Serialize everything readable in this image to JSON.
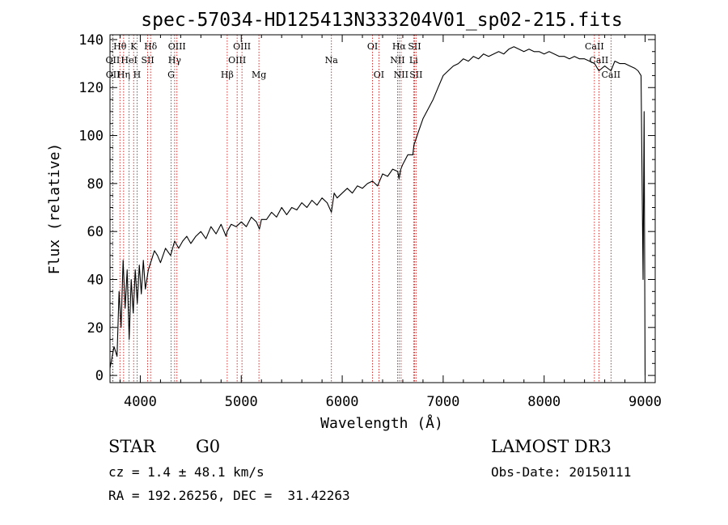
{
  "chart_data": {
    "type": "line",
    "title": "spec-57034-HD125413N333204V01_sp02-215.fits",
    "xlabel": "Wavelength (Å)",
    "ylabel": "Flux (relative)",
    "xlim": [
      3700,
      9100
    ],
    "ylim": [
      -3,
      142
    ],
    "xticks": [
      {
        "value": 4000,
        "label": "4000"
      },
      {
        "value": 5000,
        "label": "5000"
      },
      {
        "value": 6000,
        "label": "6000"
      },
      {
        "value": 7000,
        "label": "7000"
      },
      {
        "value": 8000,
        "label": "8000"
      },
      {
        "value": 9000,
        "label": "9000"
      }
    ],
    "yticks": [
      {
        "value": 0,
        "label": "0"
      },
      {
        "value": 20,
        "label": "20"
      },
      {
        "value": 40,
        "label": "40"
      },
      {
        "value": 60,
        "label": "60"
      },
      {
        "value": 80,
        "label": "80"
      },
      {
        "value": 100,
        "label": "100"
      },
      {
        "value": 120,
        "label": "120"
      },
      {
        "value": 140,
        "label": "140"
      }
    ],
    "grid": false,
    "line_color": "#000000",
    "marker_color": "#cc0000",
    "series": [
      {
        "name": "spectrum",
        "x": [
          3700,
          3740,
          3770,
          3790,
          3810,
          3830,
          3850,
          3870,
          3890,
          3910,
          3930,
          3950,
          3970,
          3990,
          4010,
          4030,
          4050,
          4080,
          4110,
          4140,
          4170,
          4200,
          4250,
          4300,
          4340,
          4380,
          4420,
          4460,
          4500,
          4550,
          4600,
          4650,
          4700,
          4750,
          4800,
          4850,
          4860,
          4900,
          4950,
          5000,
          5050,
          5100,
          5150,
          5180,
          5200,
          5250,
          5300,
          5350,
          5400,
          5450,
          5500,
          5550,
          5600,
          5650,
          5700,
          5750,
          5800,
          5850,
          5893,
          5920,
          5950,
          6000,
          6050,
          6100,
          6150,
          6200,
          6250,
          6300,
          6350,
          6400,
          6450,
          6500,
          6550,
          6563,
          6580,
          6600,
          6650,
          6700,
          6710,
          6750,
          6800,
          6850,
          6900,
          6950,
          7000,
          7050,
          7100,
          7150,
          7200,
          7250,
          7300,
          7350,
          7400,
          7450,
          7500,
          7550,
          7600,
          7650,
          7700,
          7750,
          7800,
          7850,
          7900,
          7950,
          8000,
          8050,
          8100,
          8150,
          8200,
          8250,
          8300,
          8350,
          8400,
          8450,
          8500,
          8542,
          8600,
          8662,
          8700,
          8750,
          8800,
          8850,
          8900,
          8930,
          8960,
          8980,
          8990,
          9000
        ],
        "y": [
          3,
          12,
          8,
          35,
          20,
          48,
          28,
          44,
          15,
          40,
          26,
          44,
          30,
          46,
          34,
          48,
          36,
          44,
          48,
          52,
          50,
          47,
          53,
          50,
          56,
          53,
          56,
          58,
          55,
          58,
          60,
          57,
          62,
          59,
          63,
          58,
          60,
          63,
          62,
          64,
          62,
          66,
          64,
          61,
          65,
          65,
          68,
          66,
          70,
          67,
          70,
          69,
          72,
          70,
          73,
          71,
          74,
          72,
          68,
          76,
          74,
          76,
          78,
          76,
          79,
          78,
          80,
          81,
          79,
          84,
          83,
          86,
          85,
          82,
          86,
          88,
          92,
          92,
          96,
          101,
          107,
          111,
          115,
          120,
          125,
          127,
          129,
          130,
          132,
          131,
          133,
          132,
          134,
          133,
          134,
          135,
          134,
          136,
          137,
          136,
          135,
          136,
          135,
          135,
          134,
          135,
          134,
          133,
          133,
          132,
          133,
          132,
          132,
          131,
          130,
          127,
          129,
          127,
          131,
          130,
          130,
          129,
          128,
          127,
          125,
          40,
          110,
          0
        ]
      }
    ],
    "lines": [
      {
        "wl": 3727,
        "label": "OII",
        "row": 1
      },
      {
        "wl": 3729,
        "label": "OII",
        "row": 2
      },
      {
        "wl": 3798,
        "label": "Hθ",
        "row": 0
      },
      {
        "wl": 3835,
        "label": "Hη",
        "row": 2
      },
      {
        "wl": 3889,
        "label": "HeI",
        "row": 1
      },
      {
        "wl": 3934,
        "label": "K",
        "row": 0
      },
      {
        "wl": 3968,
        "label": "H",
        "row": 2
      },
      {
        "wl": 4073,
        "label": "SII",
        "row": 1
      },
      {
        "wl": 4102,
        "label": "Hδ",
        "row": 0
      },
      {
        "wl": 4305,
        "label": "G",
        "row": 2
      },
      {
        "wl": 4340,
        "label": "Hγ",
        "row": 1
      },
      {
        "wl": 4363,
        "label": "OIII",
        "row": 0
      },
      {
        "wl": 4861,
        "label": "Hβ",
        "row": 2
      },
      {
        "wl": 4959,
        "label": "OIII",
        "row": 1
      },
      {
        "wl": 5007,
        "label": "OIII",
        "row": 0
      },
      {
        "wl": 5175,
        "label": "Mg",
        "row": 2
      },
      {
        "wl": 5893,
        "label": "Na",
        "row": 1
      },
      {
        "wl": 6300,
        "label": "OI",
        "row": 0
      },
      {
        "wl": 6363,
        "label": "OI",
        "row": 2
      },
      {
        "wl": 6548,
        "label": "NII",
        "row": 1
      },
      {
        "wl": 6563,
        "label": "Hα",
        "row": 0
      },
      {
        "wl": 6583,
        "label": "NII",
        "row": 2
      },
      {
        "wl": 6707,
        "label": "Li",
        "row": 1
      },
      {
        "wl": 6716,
        "label": "SII",
        "row": 0
      },
      {
        "wl": 6731,
        "label": "SII",
        "row": 2
      },
      {
        "wl": 8498,
        "label": "CaII",
        "row": 0
      },
      {
        "wl": 8542,
        "label": "CaII",
        "row": 1
      },
      {
        "wl": 8662,
        "label": "CaII",
        "row": 2
      }
    ]
  },
  "info": {
    "class_label": "STAR",
    "subclass": "G0",
    "cz": "cz = 1.4 ± 48.1 km/s",
    "radec": "RA = 192.26256, DEC =  31.42263",
    "survey": "LAMOST DR3",
    "obs_date": "Obs-Date: 20150111"
  }
}
